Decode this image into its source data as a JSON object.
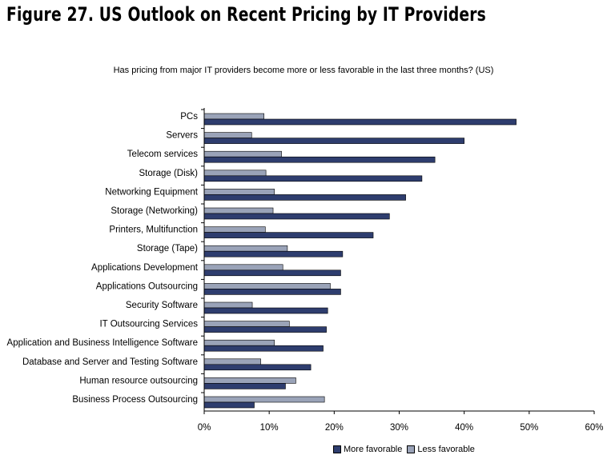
{
  "figure_title": "Figure 27. US Outlook on Recent Pricing by IT Providers",
  "chart_data": {
    "type": "bar",
    "orientation": "horizontal",
    "title": "Has pricing from major IT providers become more or less favorable in the last three months? (US)",
    "xlabel": "",
    "ylabel": "",
    "xlim": [
      0,
      60
    ],
    "x_ticks": [
      "0%",
      "10%",
      "20%",
      "30%",
      "40%",
      "50%",
      "60%"
    ],
    "grid": false,
    "legend_position": "bottom-right",
    "categories": [
      "PCs",
      "Servers",
      "Telecom services",
      "Storage (Disk)",
      "Networking Equipment",
      "Storage (Networking)",
      "Printers, Multifunction",
      "Storage (Tape)",
      "Applications Development",
      "Applications Outsourcing",
      "Security Software",
      "IT Outsourcing Services",
      "Application and Business Intelligence Software",
      "Database and Server and Testing Software",
      "Human resource outsourcing",
      "Business Process Outsourcing"
    ],
    "series": [
      {
        "name": "More favorable",
        "color": "#2e3d6e",
        "values": [
          48,
          40,
          35.5,
          33.5,
          31,
          28.5,
          26,
          21.3,
          21,
          21,
          19,
          18.8,
          18.3,
          16.4,
          12.5,
          7.7
        ]
      },
      {
        "name": "Less favorable",
        "color": "#9aa3b8",
        "values": [
          9.2,
          7.3,
          11.9,
          9.5,
          10.8,
          10.6,
          9.4,
          12.8,
          12.1,
          19.4,
          7.4,
          13.1,
          10.8,
          8.7,
          14.1,
          18.5
        ]
      }
    ]
  }
}
